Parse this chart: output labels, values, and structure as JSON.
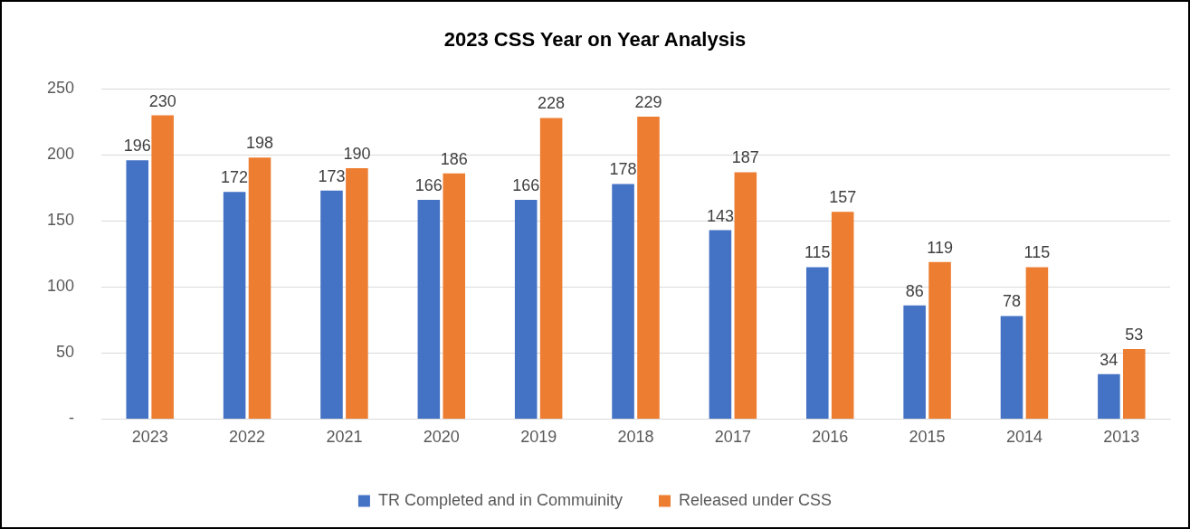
{
  "chart_data": {
    "type": "bar",
    "title": "2023 CSS Year on Year Analysis",
    "categories": [
      "2023",
      "2022",
      "2021",
      "2020",
      "2019",
      "2018",
      "2017",
      "2016",
      "2015",
      "2014",
      "2013"
    ],
    "series": [
      {
        "name": "TR Completed and in Commuinity",
        "color": "#4472c4",
        "values": [
          196,
          172,
          173,
          166,
          166,
          178,
          143,
          115,
          86,
          78,
          34
        ]
      },
      {
        "name": "Released under CSS",
        "color": "#ed7d31",
        "values": [
          230,
          198,
          190,
          186,
          228,
          229,
          187,
          157,
          119,
          115,
          53
        ]
      }
    ],
    "ylim": [
      0,
      250
    ],
    "yticks": [
      {
        "value": 0,
        "label": "-"
      },
      50,
      100,
      150,
      200,
      250
    ],
    "grid": "y",
    "legend": "bottom",
    "data_labels": true
  }
}
